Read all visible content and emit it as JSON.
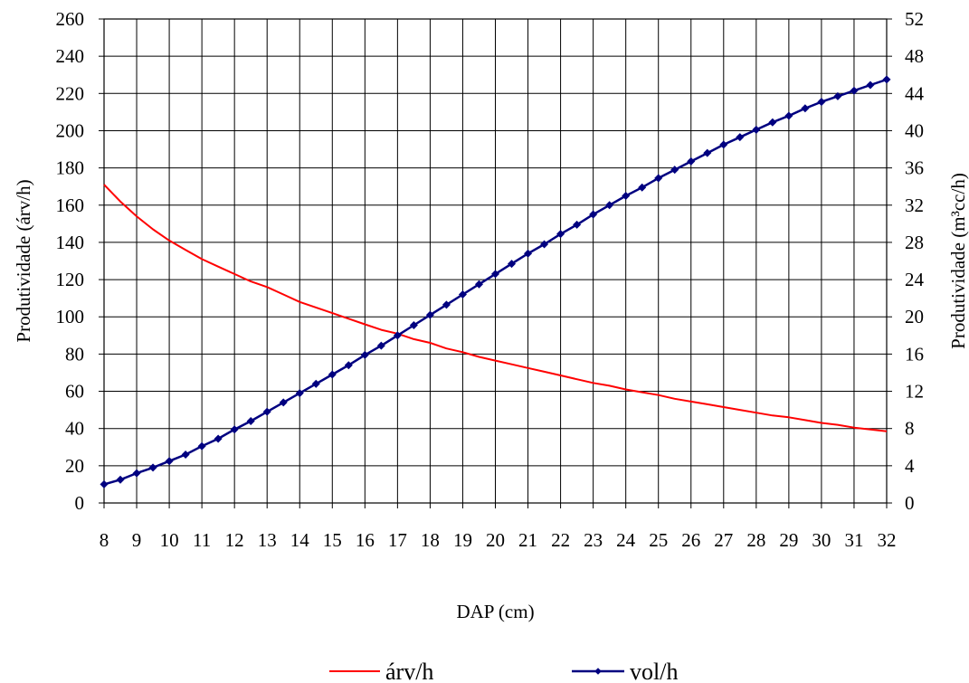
{
  "chart_data": {
    "type": "line",
    "xlabel": "DAP (cm)",
    "ylabel_left": "Produtividade (árv/h)",
    "ylabel_right": "Produtividade (m³cc/h)",
    "xlim": [
      8,
      32
    ],
    "ylim_left": [
      0,
      260
    ],
    "ylim_right": [
      0,
      52
    ],
    "x_ticks": [
      "8",
      "9",
      "10",
      "11",
      "12",
      "13",
      "14",
      "15",
      "16",
      "17",
      "18",
      "19",
      "20",
      "21",
      "22",
      "23",
      "24",
      "25",
      "26",
      "27",
      "28",
      "29",
      "30",
      "31",
      "32"
    ],
    "y_left_ticks": [
      "0",
      "20",
      "40",
      "60",
      "80",
      "100",
      "120",
      "140",
      "160",
      "180",
      "200",
      "220",
      "240",
      "260"
    ],
    "y_right_ticks": [
      "0",
      "4",
      "8",
      "12",
      "16",
      "20",
      "24",
      "28",
      "32",
      "36",
      "40",
      "44",
      "48",
      "52"
    ],
    "grid": true,
    "legend_position": "bottom",
    "x": [
      8,
      8.5,
      9,
      9.5,
      10,
      10.5,
      11,
      11.5,
      12,
      12.5,
      13,
      13.5,
      14,
      14.5,
      15,
      15.5,
      16,
      16.5,
      17,
      17.5,
      18,
      18.5,
      19,
      19.5,
      20,
      20.5,
      21,
      21.5,
      22,
      22.5,
      23,
      23.5,
      24,
      24.5,
      25,
      25.5,
      26,
      26.5,
      27,
      27.5,
      28,
      28.5,
      29,
      29.5,
      30,
      30.5,
      31,
      31.5,
      32
    ],
    "series": [
      {
        "name": "árv/h",
        "axis": "left",
        "color": "#ff0000",
        "marker": "none",
        "values": [
          171,
          162,
          154,
          147,
          141,
          136,
          131,
          127,
          123,
          119,
          116,
          112,
          108,
          105,
          102,
          99,
          96,
          93,
          91,
          88,
          86,
          83,
          81,
          78.5,
          76.5,
          74.5,
          72.5,
          70.5,
          68.5,
          66.5,
          64.5,
          63,
          61,
          59.5,
          58,
          56,
          54.5,
          53,
          51.5,
          50,
          48.5,
          47,
          46,
          44.5,
          43,
          42,
          40.5,
          39.5,
          38.5
        ]
      },
      {
        "name": "vol/h",
        "axis": "right",
        "color": "#000080",
        "marker": "diamond",
        "values": [
          2.0,
          2.5,
          3.2,
          3.8,
          4.5,
          5.2,
          6.1,
          6.9,
          7.9,
          8.8,
          9.8,
          10.8,
          11.8,
          12.8,
          13.8,
          14.8,
          15.9,
          16.9,
          18.0,
          19.1,
          20.2,
          21.3,
          22.4,
          23.5,
          24.6,
          25.7,
          26.8,
          27.8,
          28.9,
          29.9,
          31.0,
          32.0,
          33.0,
          33.9,
          34.9,
          35.8,
          36.7,
          37.6,
          38.5,
          39.3,
          40.1,
          40.9,
          41.6,
          42.4,
          43.1,
          43.7,
          44.3,
          44.9,
          45.5
        ]
      }
    ]
  }
}
